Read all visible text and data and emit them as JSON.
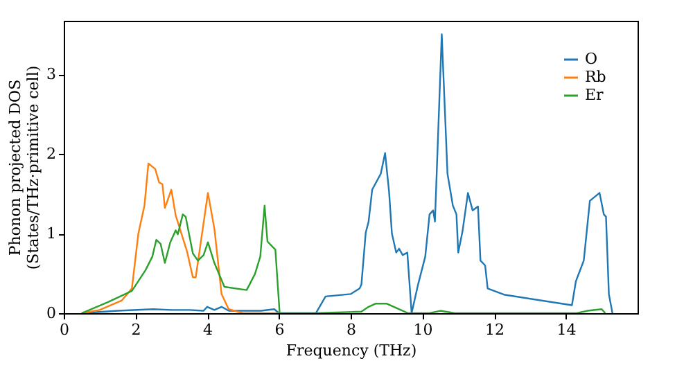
{
  "chart_data": {
    "type": "line",
    "xlabel": "Frequency (THz)",
    "ylabel": "Phonon projected DOS\n(States/THz·primitive cell)",
    "xlim": [
      0,
      16
    ],
    "ylim": [
      0,
      3.67
    ],
    "xticks": [
      0,
      2,
      4,
      6,
      8,
      10,
      12,
      14
    ],
    "yticks": [
      0,
      1,
      2,
      3
    ],
    "legend": "top right",
    "grid": false,
    "marker": "none",
    "line_style": "solid",
    "series": [
      {
        "name": "O",
        "color": "#1f77b4",
        "x": [
          0.5,
          1.5,
          2.5,
          3.0,
          3.5,
          3.9,
          4.0,
          4.2,
          4.4,
          4.6,
          5.0,
          5.5,
          5.87,
          6.0,
          7.03,
          7.3,
          8.0,
          8.25,
          8.3,
          8.42,
          8.5,
          8.6,
          8.84,
          8.96,
          9.07,
          9.15,
          9.27,
          9.35,
          9.45,
          9.58,
          9.7,
          9.88,
          10.08,
          10.2,
          10.3,
          10.35,
          10.54,
          10.7,
          10.85,
          10.95,
          11.0,
          11.12,
          11.27,
          11.4,
          11.55,
          11.62,
          11.75,
          11.82,
          12.3,
          14.17,
          14.28,
          14.5,
          14.67,
          14.94,
          15.06,
          15.12,
          15.2,
          15.3
        ],
        "values": [
          0.0,
          0.03,
          0.05,
          0.04,
          0.04,
          0.03,
          0.08,
          0.04,
          0.08,
          0.03,
          0.03,
          0.03,
          0.05,
          0.0,
          0.0,
          0.21,
          0.24,
          0.31,
          0.36,
          1.01,
          1.15,
          1.55,
          1.75,
          2.01,
          1.53,
          1.0,
          0.76,
          0.81,
          0.73,
          0.76,
          0.0,
          0.36,
          0.71,
          1.24,
          1.29,
          1.15,
          3.5,
          1.75,
          1.35,
          1.24,
          0.76,
          1.03,
          1.51,
          1.29,
          1.34,
          0.66,
          0.6,
          0.31,
          0.23,
          0.1,
          0.4,
          0.66,
          1.41,
          1.51,
          1.24,
          1.21,
          0.24,
          0.0
        ]
      },
      {
        "name": "Rb",
        "color": "#ff7f0e",
        "x": [
          0.5,
          1.0,
          1.62,
          1.9,
          2.08,
          2.25,
          2.36,
          2.55,
          2.66,
          2.75,
          2.82,
          3.0,
          3.12,
          3.44,
          3.6,
          3.68,
          4.02,
          4.2,
          4.4,
          4.6,
          5.0,
          6.0
        ],
        "values": [
          0.0,
          0.04,
          0.16,
          0.31,
          1.0,
          1.35,
          1.88,
          1.81,
          1.64,
          1.62,
          1.32,
          1.55,
          1.23,
          0.77,
          0.45,
          0.45,
          1.51,
          1.06,
          0.24,
          0.05,
          0.0,
          0.0
        ]
      },
      {
        "name": "Er",
        "color": "#2ca02c",
        "x": [
          0.5,
          1.24,
          1.9,
          2.28,
          2.47,
          2.58,
          2.7,
          2.82,
          2.97,
          3.12,
          3.18,
          3.32,
          3.4,
          3.6,
          3.74,
          3.9,
          4.02,
          4.2,
          4.48,
          5.1,
          5.33,
          5.48,
          5.6,
          5.68,
          5.83,
          5.9,
          6.02,
          7.0,
          8.3,
          8.5,
          8.7,
          9.0,
          9.3,
          9.6,
          10.2,
          10.5,
          10.9,
          14.3,
          14.6,
          15.0,
          15.1
        ],
        "values": [
          0.0,
          0.14,
          0.28,
          0.54,
          0.71,
          0.92,
          0.87,
          0.63,
          0.89,
          1.04,
          0.99,
          1.24,
          1.21,
          0.75,
          0.66,
          0.73,
          0.89,
          0.63,
          0.33,
          0.29,
          0.49,
          0.71,
          1.35,
          0.9,
          0.83,
          0.8,
          0.0,
          0.0,
          0.02,
          0.08,
          0.12,
          0.12,
          0.06,
          0.0,
          0.0,
          0.03,
          0.0,
          0.0,
          0.03,
          0.05,
          0.0
        ]
      }
    ]
  }
}
